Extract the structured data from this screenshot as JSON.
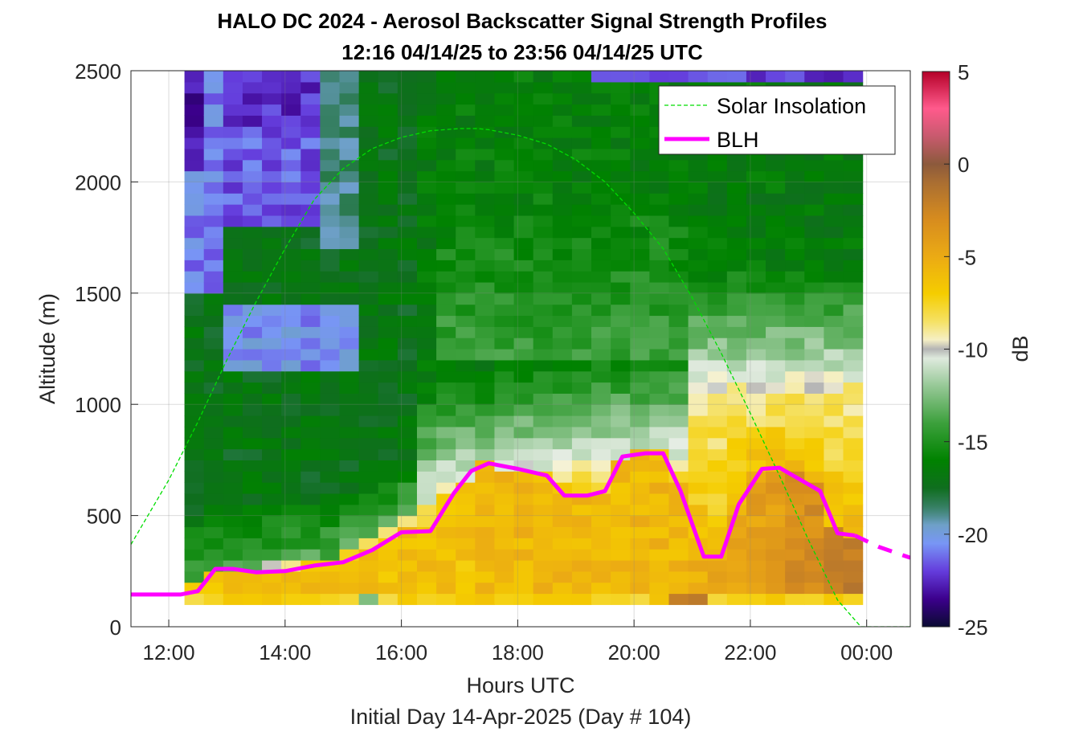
{
  "chart_data": {
    "type": "heatmap",
    "title": "HALO DC 2024 - Aerosol Backscatter Signal Strength Profiles",
    "subtitle": "12:16 04/14/25 to 23:56 04/14/25  UTC",
    "xlabel": "Hours UTC",
    "xlabel2": "Initial Day 14-Apr-2025 (Day # 104)",
    "ylabel": "Altitude (m)",
    "colorbar_label": "dB",
    "xlim": [
      11.35,
      24.75
    ],
    "ylim": [
      0,
      2500
    ],
    "xticks": [
      12,
      14,
      16,
      18,
      20,
      22,
      24
    ],
    "xtick_labels": [
      "12:00",
      "14:00",
      "16:00",
      "18:00",
      "20:00",
      "22:00",
      "00:00"
    ],
    "yticks": [
      0,
      500,
      1000,
      1500,
      2000,
      2500
    ],
    "ytick_labels": [
      "0",
      "500",
      "1000",
      "1500",
      "2000",
      "2500"
    ],
    "clim": [
      -25,
      5
    ],
    "cticks": [
      -25,
      -20,
      -15,
      -10,
      -5,
      0,
      5
    ],
    "ctick_labels": [
      "-25",
      "-20",
      "-15",
      "-10",
      "-5",
      "0",
      "5"
    ],
    "grid": true,
    "legend_position": "top-right",
    "heatmap": {
      "x_start": 12.27,
      "x_end": 23.93,
      "y_start": 100,
      "y_end": 2500,
      "columns": 35,
      "rows": 48
    },
    "series": [
      {
        "name": "Solar Insolation",
        "style": "dashed",
        "color": "#00dd00",
        "x": [
          11.35,
          12.0,
          12.5,
          13.0,
          13.5,
          14.0,
          14.5,
          15.0,
          15.5,
          16.0,
          16.5,
          17.0,
          17.3,
          17.5,
          18.0,
          18.5,
          19.0,
          19.5,
          20.0,
          20.5,
          21.0,
          21.5,
          22.0,
          22.5,
          23.0,
          23.5,
          23.9,
          24.75
        ],
        "y": [
          370,
          660,
          920,
          1200,
          1460,
          1700,
          1920,
          2060,
          2150,
          2200,
          2230,
          2240,
          2240,
          2235,
          2210,
          2170,
          2100,
          2000,
          1860,
          1700,
          1480,
          1230,
          960,
          680,
          390,
          120,
          0,
          0
        ]
      },
      {
        "name": "BLH",
        "style": "solid",
        "color": "#ff00ff",
        "x": [
          11.35,
          12.2,
          12.5,
          12.8,
          13.1,
          13.5,
          14.0,
          14.5,
          15.0,
          15.5,
          16.0,
          16.5,
          16.9,
          17.2,
          17.5,
          18.0,
          18.5,
          18.8,
          19.2,
          19.5,
          19.8,
          20.2,
          20.5,
          20.8,
          21.2,
          21.5,
          21.8,
          22.2,
          22.5,
          22.8,
          23.2,
          23.5,
          23.8,
          24.2,
          24.75
        ],
        "y": [
          145,
          145,
          160,
          260,
          260,
          245,
          250,
          275,
          290,
          345,
          425,
          430,
          600,
          700,
          735,
          710,
          680,
          590,
          590,
          610,
          765,
          780,
          780,
          610,
          315,
          315,
          550,
          710,
          715,
          670,
          610,
          420,
          410,
          360,
          310
        ]
      }
    ]
  }
}
